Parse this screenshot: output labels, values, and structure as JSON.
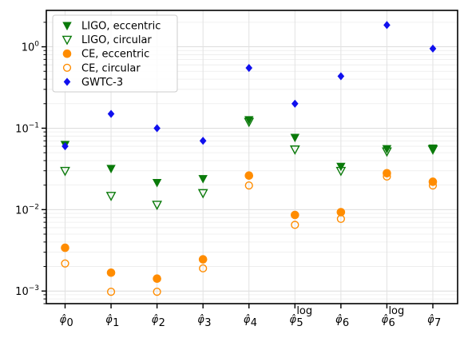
{
  "chart_data": {
    "type": "scatter",
    "title": "",
    "xlabel": "",
    "ylabel": "",
    "yscale": "log",
    "ylim": [
      0.0007,
      2.8
    ],
    "grid": true,
    "legend_placement": "top-left",
    "categories": [
      {
        "base": "φ̂",
        "sub": "0",
        "sup": ""
      },
      {
        "base": "φ̂",
        "sub": "1",
        "sup": ""
      },
      {
        "base": "φ̂",
        "sub": "2",
        "sup": ""
      },
      {
        "base": "φ̂",
        "sub": "3",
        "sup": ""
      },
      {
        "base": "φ̂",
        "sub": "4",
        "sup": ""
      },
      {
        "base": "φ̂",
        "sub": "5",
        "sup": "log"
      },
      {
        "base": "φ̂",
        "sub": "6",
        "sup": ""
      },
      {
        "base": "φ̂",
        "sub": "6",
        "sup": "log"
      },
      {
        "base": "φ̂",
        "sub": "7",
        "sup": ""
      }
    ],
    "y_ticks": [
      {
        "value": 0.001,
        "mant": "10",
        "exp": "−3"
      },
      {
        "value": 0.01,
        "mant": "10",
        "exp": "−2"
      },
      {
        "value": 0.1,
        "mant": "10",
        "exp": "−1"
      },
      {
        "value": 1,
        "mant": "10",
        "exp": "0"
      }
    ],
    "series": [
      {
        "name": "LIGO, eccentric",
        "marker": "triangle-down",
        "filled": true,
        "color": "#0a7a0a",
        "values": [
          0.063,
          0.032,
          0.0215,
          0.024,
          0.127,
          0.077,
          0.034,
          0.056,
          0.057
        ]
      },
      {
        "name": "LIGO, circular",
        "marker": "triangle-down",
        "filled": false,
        "color": "#0a7a0a",
        "values": [
          0.03,
          0.0148,
          0.0115,
          0.016,
          0.12,
          0.055,
          0.03,
          0.052,
          0.055
        ]
      },
      {
        "name": "CE, eccentric",
        "marker": "circle",
        "filled": true,
        "color": "#ff8c00",
        "values": [
          0.0034,
          0.00168,
          0.00142,
          0.00245,
          0.0262,
          0.0086,
          0.0093,
          0.028,
          0.022
        ]
      },
      {
        "name": "CE, circular",
        "marker": "circle",
        "filled": false,
        "color": "#ff8c00",
        "values": [
          0.00218,
          0.00098,
          0.00098,
          0.0019,
          0.0198,
          0.0065,
          0.0077,
          0.0255,
          0.0198
        ]
      },
      {
        "name": "GWTC-3",
        "marker": "diamond",
        "filled": true,
        "color": "#1010ee",
        "values": [
          0.06,
          0.15,
          0.1,
          0.07,
          0.55,
          0.2,
          0.435,
          1.85,
          0.95
        ]
      }
    ]
  }
}
